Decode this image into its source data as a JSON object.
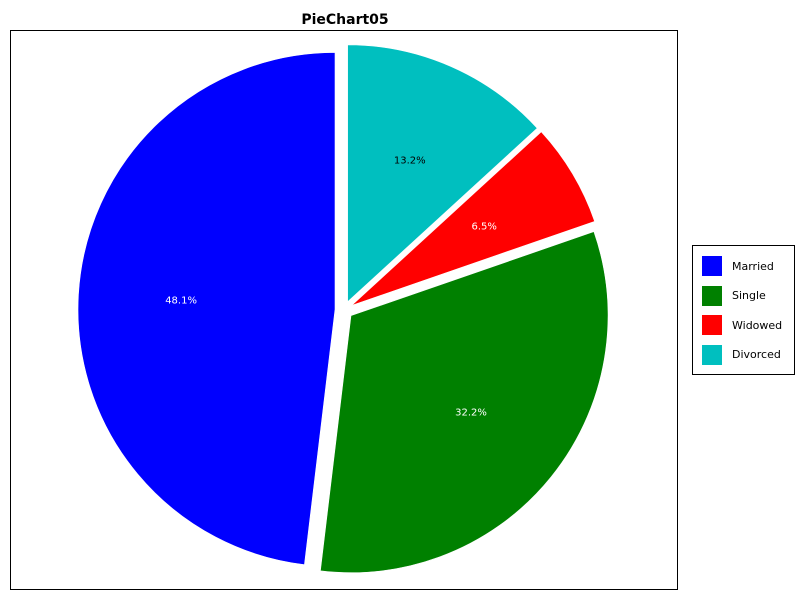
{
  "chart_data": {
    "type": "pie",
    "title": "PieChart05",
    "categories": [
      "Married",
      "Single",
      "Widowed",
      "Divorced"
    ],
    "values": [
      48.1,
      32.2,
      6.5,
      13.2
    ],
    "labels": [
      "48.1%",
      "32.2%",
      "6.5%",
      "13.2%"
    ],
    "colors": [
      "#0000ff",
      "#008000",
      "#ff0000",
      "#00bfbf"
    ],
    "label_colors": [
      "#ffffff",
      "#ffffff",
      "#ffffff",
      "#000000"
    ],
    "exploded": true,
    "start_angle": "12 o'clock, counter-clockwise",
    "legend_position": "right"
  }
}
